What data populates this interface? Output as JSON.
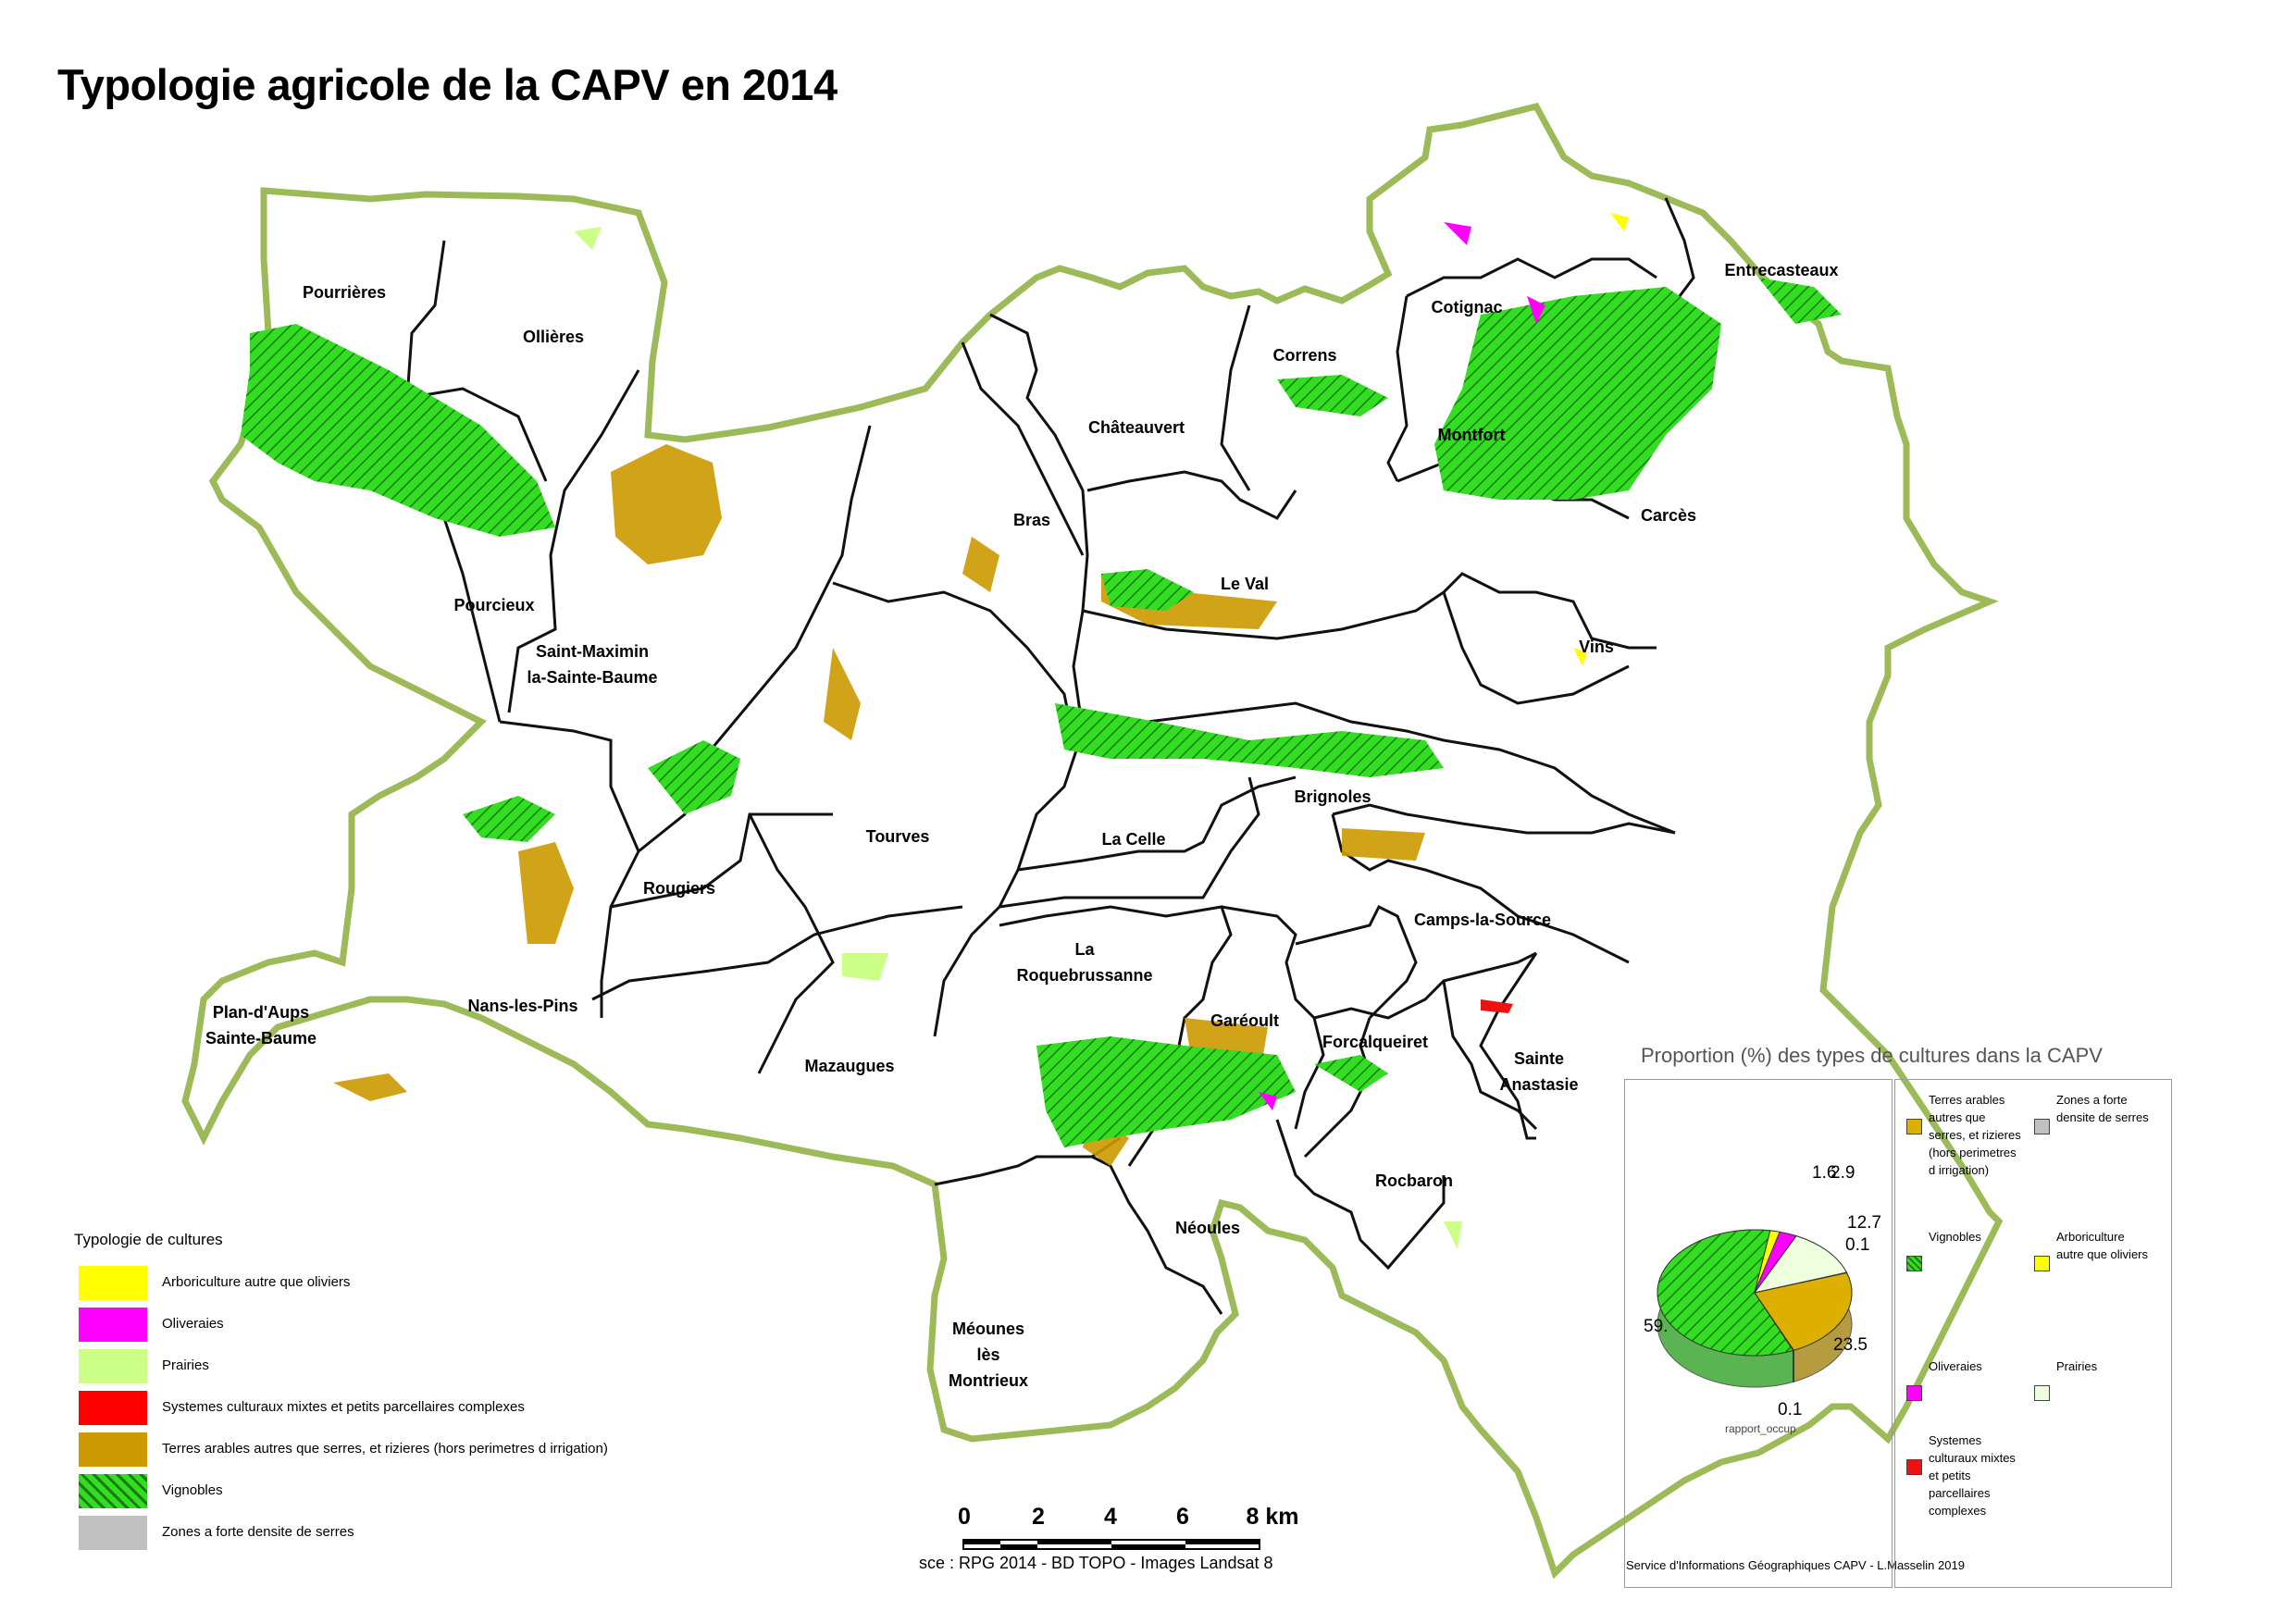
{
  "map": {
    "title": "Typologie agricole de la CAPV en 2014",
    "communes": [
      "Pourrières",
      "Ollières",
      "Pourcieux",
      "Saint-Maximin\nla-Sainte-Baume",
      "Bras",
      "Châteauvert",
      "Correns",
      "Cotignac",
      "Entrecasteaux",
      "Montfort",
      "Carcès",
      "Le Val",
      "Vins",
      "Brignoles",
      "Tourves",
      "La Celle",
      "Rougiers",
      "Nans-les-Pins",
      "Plan-d'Aups\nSainte-Baume",
      "Mazaugues",
      "La\nRoquebrussanne",
      "Garéoult",
      "Forcalqueiret",
      "Camps-la-Source",
      "Sainte\nAnastasie",
      "Rocbaron",
      "Néoules",
      "Méounes\nlès\nMontrieux"
    ]
  },
  "legend": {
    "title": "Typologie de cultures",
    "items": [
      {
        "label": "Arboriculture autre que oliviers",
        "color": "#ffff00"
      },
      {
        "label": "Oliveraies",
        "color": "#ff00ff"
      },
      {
        "label": "Prairies",
        "color": "#ccff88"
      },
      {
        "label": "Systemes culturaux mixtes et petits parcellaires complexes",
        "color": "#ff0000"
      },
      {
        "label": "Terres arables autres que serres, et rizieres (hors perimetres d irrigation)",
        "color": "#cc9900"
      },
      {
        "label": "Vignobles",
        "color": "#33dd22",
        "pattern": "hatch"
      },
      {
        "label": "Zones a forte densite de serres",
        "color": "#c0c0c0"
      }
    ]
  },
  "scale": {
    "ticks": [
      "0",
      "2",
      "4",
      "6",
      "8 km"
    ],
    "source": "sce : RPG 2014 - BD TOPO - Images Landsat 8"
  },
  "credit": "Service d'Informations Géographiques CAPV - L.Masselin 2019",
  "chart_data": {
    "type": "pie",
    "title": "Proportion (%) des types de cultures dans la CAPV",
    "caption": "rapport_occup",
    "slices": [
      {
        "label": "Vignobles",
        "value": 59.0,
        "display": "59.",
        "color": "#33dd22"
      },
      {
        "label": "Arboriculture autre que oliviers",
        "value": 1.6,
        "display": "1.6",
        "color": "#ffff00"
      },
      {
        "label": "Oliveraies",
        "value": 2.9,
        "display": "2.9",
        "color": "#ff00ff"
      },
      {
        "label": "Prairies",
        "value": 12.7,
        "display": "12.7",
        "color": "#eeffdd"
      },
      {
        "label": "Zones a forte densite de serres",
        "value": 0.1,
        "display": "0.1",
        "color": "#c0c0c0"
      },
      {
        "label": "Terres arables autres que serres, et rizieres (hors perimetres d irrigation)",
        "value": 23.5,
        "display": "23.5",
        "color": "#ddb000"
      },
      {
        "label": "Systemes culturaux mixtes et petits parcellaires complexes",
        "value": 0.1,
        "display": "0.1",
        "color": "#ee1111"
      }
    ],
    "legend": [
      {
        "label": "Terres arables autres que serres, et rizieres (hors perimetres d irrigation)",
        "color": "#ddb000"
      },
      {
        "label": "Zones a forte densite de serres",
        "color": "#c0c0c0"
      },
      {
        "label": "Vignobles",
        "color": "#33dd22"
      },
      {
        "label": "Arboriculture autre que oliviers",
        "color": "#ffff00"
      },
      {
        "label": "Oliveraies",
        "color": "#ff00ff"
      },
      {
        "label": "Prairies",
        "color": "#eeffdd"
      },
      {
        "label": "Systemes culturaux mixtes et petits parcellaires complexes",
        "color": "#ee1111"
      }
    ]
  }
}
